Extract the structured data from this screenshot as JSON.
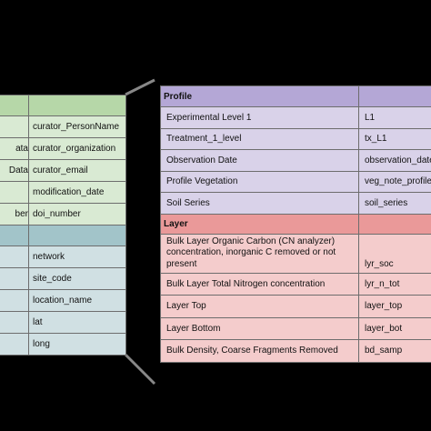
{
  "left_table": {
    "green_rows": [
      {
        "label": "",
        "field": "curator_PersonName"
      },
      {
        "label": "ata",
        "field": "curator_organization"
      },
      {
        "label": "Data",
        "field": "curator_email"
      },
      {
        "label": "",
        "field": "modification_date"
      },
      {
        "label": "ber",
        "field": "doi_number"
      }
    ],
    "blue_rows": [
      {
        "label": "",
        "field": "network"
      },
      {
        "label": "",
        "field": "site_code"
      },
      {
        "label": "",
        "field": "location_name"
      },
      {
        "label": "",
        "field": "lat"
      },
      {
        "label": "",
        "field": "long"
      }
    ]
  },
  "right_table": {
    "profile_header": "Profile",
    "profile_rows": [
      {
        "label": "Experimental Level 1",
        "field": "L1"
      },
      {
        "label": "Treatment_1_level",
        "field": "tx_L1"
      },
      {
        "label": "Observation Date",
        "field": "observation_date"
      },
      {
        "label": "Profile Vegetation",
        "field": "veg_note_profile"
      },
      {
        "label": "Soil Series",
        "field": "soil_series"
      }
    ],
    "layer_header": "Layer",
    "layer_rows": [
      {
        "label": "Bulk Layer Organic Carbon (CN analyzer) concentration, inorganic C removed or not present",
        "field": "lyr_soc"
      },
      {
        "label": "Bulk Layer Total Nitrogen concentration",
        "field": "lyr_n_tot"
      },
      {
        "label": "Layer Top",
        "field": "layer_top"
      },
      {
        "label": "Layer Bottom",
        "field": "layer_bot"
      },
      {
        "label": "Bulk Density, Coarse Fragments Removed",
        "field": "bd_samp"
      }
    ]
  },
  "colors": {
    "background": "#000000",
    "green_header": "#b6d7a8",
    "green_row": "#d9ead3",
    "blue_header": "#a2c4c9",
    "blue_row": "#d0e0e3",
    "purple_header": "#b4a7d6",
    "purple_row": "#d9d2e9",
    "red_header": "#ea9999",
    "red_row": "#f4cccc",
    "connector": "#888888"
  }
}
